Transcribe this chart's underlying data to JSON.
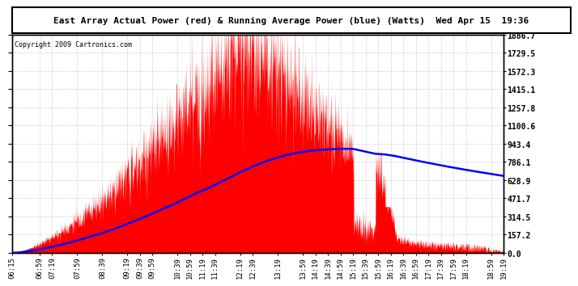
{
  "title": "East Array Actual Power (red) & Running Average Power (blue) (Watts)  Wed Apr 15  19:36",
  "copyright": "Copyright 2009 Cartronics.com",
  "ylabel_right": [
    "1886.7",
    "1729.5",
    "1572.3",
    "1415.1",
    "1257.8",
    "1100.6",
    "943.4",
    "786.1",
    "628.9",
    "471.7",
    "314.5",
    "157.2",
    "0.0"
  ],
  "ymax": 1886.7,
  "ymin": 0.0,
  "x_labels": [
    "06:15",
    "06:59",
    "07:19",
    "07:59",
    "08:39",
    "09:19",
    "09:39",
    "09:59",
    "10:39",
    "10:59",
    "11:19",
    "11:39",
    "12:19",
    "12:39",
    "13:19",
    "13:59",
    "14:19",
    "14:39",
    "14:59",
    "15:19",
    "15:39",
    "15:59",
    "16:19",
    "16:39",
    "16:59",
    "17:19",
    "17:39",
    "17:59",
    "18:19",
    "18:59",
    "19:19"
  ],
  "x_label_times_min": [
    375,
    419,
    439,
    479,
    519,
    559,
    579,
    599,
    639,
    659,
    679,
    699,
    739,
    759,
    799,
    839,
    859,
    879,
    899,
    919,
    939,
    959,
    979,
    999,
    1019,
    1039,
    1059,
    1079,
    1099,
    1139,
    1159
  ],
  "t_start": 375,
  "t_end": 1159,
  "background_color": "#ffffff",
  "plot_bg_color": "#ffffff",
  "grid_color": "#aaaaaa",
  "red_fill_color": "#ff0000",
  "blue_line_color": "#0000ff",
  "border_color": "#000000",
  "title_fontsize": 8.0,
  "copyright_fontsize": 6.0,
  "tick_fontsize": 6.5,
  "ytick_fontsize": 7.0
}
